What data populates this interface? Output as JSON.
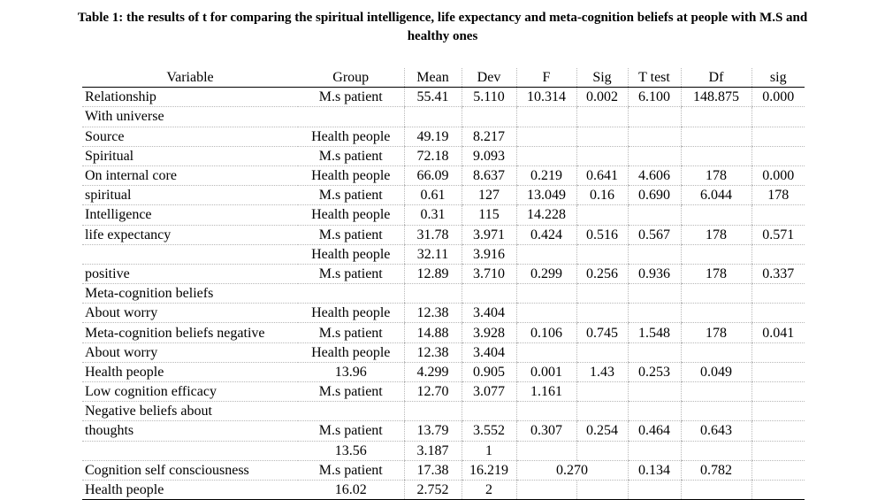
{
  "caption": {
    "line1": "Table 1: the results of t for comparing the spiritual intelligence, life expectancy and meta-cognition beliefs at people with M.S and",
    "line2": "healthy ones"
  },
  "headers": [
    "Variable",
    "Group",
    "Mean",
    "Dev",
    "F",
    "Sig",
    "T test",
    "Df",
    "sig"
  ],
  "rows": [
    {
      "type": "full",
      "cells": [
        "Relationship",
        "M.s patient",
        "55.41",
        "5.110",
        "10.314",
        "0.002",
        "6.100",
        "148.875",
        "0.000"
      ]
    },
    {
      "type": "full",
      "cells": [
        "With universe",
        "",
        "",
        "",
        "",
        "",
        "",
        "",
        ""
      ]
    },
    {
      "type": "full",
      "cells": [
        "Source",
        "Health people",
        "49.19",
        "8.217",
        "",
        "",
        "",
        "",
        ""
      ]
    },
    {
      "type": "full",
      "cells": [
        "Spiritual",
        "M.s patient",
        "72.18",
        "9.093",
        "",
        "",
        "",
        "",
        ""
      ]
    },
    {
      "type": "full",
      "cells": [
        "On internal core",
        "Health people",
        "66.09",
        "8.637",
        "0.219",
        "0.641",
        "4.606",
        "178",
        "0.000"
      ]
    },
    {
      "type": "full",
      "cells": [
        "spiritual",
        "M.s patient",
        "0.61",
        "127",
        "13.049",
        "0.16",
        "0.690",
        "6.044",
        "178"
      ]
    },
    {
      "type": "full",
      "cells": [
        "Intelligence",
        "Health people",
        "0.31",
        "115",
        "14.228",
        "",
        "",
        "",
        ""
      ]
    },
    {
      "type": "full",
      "cells": [
        "life expectancy",
        "M.s patient",
        "31.78",
        "3.971",
        "0.424",
        "0.516",
        "0.567",
        "178",
        "0.571"
      ]
    },
    {
      "type": "full",
      "cells": [
        "",
        "Health people",
        "32.11",
        "3.916",
        "",
        "",
        "",
        "",
        ""
      ]
    },
    {
      "type": "full",
      "cells": [
        "positive",
        "M.s patient",
        "12.89",
        "3.710",
        "0.299",
        "0.256",
        "0.936",
        "178",
        "0.337"
      ]
    },
    {
      "type": "full",
      "cells": [
        "Meta-cognition beliefs",
        "",
        "",
        "",
        "",
        "",
        "",
        "",
        ""
      ]
    },
    {
      "type": "full",
      "cells": [
        "About worry",
        "Health people",
        "12.38",
        "3.404",
        "",
        "",
        "",
        "",
        ""
      ]
    },
    {
      "type": "full",
      "cells": [
        "Meta-cognition beliefs negative",
        "M.s patient",
        "14.88",
        "3.928",
        "0.106",
        "0.745",
        "1.548",
        "178",
        "0.041"
      ]
    },
    {
      "type": "full",
      "cells": [
        "About worry",
        "Health people",
        "12.38",
        "3.404",
        "",
        "",
        "",
        "",
        ""
      ]
    },
    {
      "type": "full",
      "cells": [
        "Health people",
        "13.96",
        "4.299",
        "0.905",
        "0.001",
        "1.43",
        "0.253",
        "0.049",
        ""
      ]
    },
    {
      "type": "full",
      "cells": [
        "Low cognition efficacy",
        "M.s patient",
        "12.70",
        "3.077",
        "1.161",
        "",
        "",
        "",
        ""
      ]
    },
    {
      "type": "full",
      "cells": [
        "Negative beliefs about",
        "",
        "",
        "",
        "",
        "",
        "",
        "",
        ""
      ]
    },
    {
      "type": "full",
      "cells": [
        "thoughts",
        "M.s patient",
        "13.79",
        "3.552",
        "0.307",
        "0.254",
        "0.464",
        "0.643",
        ""
      ]
    },
    {
      "type": "full",
      "cells": [
        "",
        "13.56",
        "3.187",
        "1",
        "",
        "",
        "",
        "",
        ""
      ]
    },
    {
      "type": "merged",
      "cells": [
        "Cognition self consciousness",
        "M.s patient",
        "17.38",
        "16.219",
        "0.270",
        "0.134",
        "0.782",
        ""
      ]
    },
    {
      "type": "full",
      "cells": [
        "Health people",
        "16.02",
        "2.752",
        "2",
        "",
        "",
        "",
        "",
        ""
      ]
    }
  ]
}
